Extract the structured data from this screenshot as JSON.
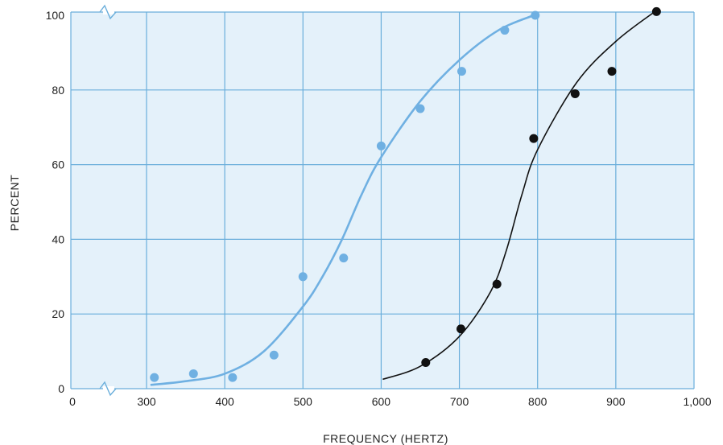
{
  "chart_data": {
    "type": "scatter",
    "xlabel": "FREQUENCY (HERTZ)",
    "ylabel": "PERCENT",
    "xlim": [
      300,
      1000
    ],
    "ylim": [
      0,
      100
    ],
    "x_ticks": [
      "0",
      "300",
      "400",
      "500",
      "600",
      "700",
      "800",
      "900",
      "1,000"
    ],
    "y_ticks": [
      "0",
      "20",
      "40",
      "60",
      "80",
      "100"
    ],
    "axis_breaks": [
      "x"
    ],
    "grid": true,
    "colors": {
      "plot_background": "#e4f1fa",
      "grid": "#6aaedb",
      "series_blue": "#6fb0e2",
      "series_black": "#111111"
    },
    "series": [
      {
        "color": "blue",
        "points": [
          [
            310,
            3
          ],
          [
            360,
            4
          ],
          [
            410,
            3
          ],
          [
            463,
            9
          ],
          [
            500,
            30
          ],
          [
            552,
            35
          ],
          [
            600,
            65
          ],
          [
            650,
            75
          ],
          [
            703,
            85
          ],
          [
            758,
            96
          ],
          [
            797,
            100
          ]
        ],
        "curve": [
          [
            305,
            1
          ],
          [
            350,
            2
          ],
          [
            400,
            4
          ],
          [
            450,
            10
          ],
          [
            500,
            22
          ],
          [
            525,
            30
          ],
          [
            550,
            40
          ],
          [
            575,
            52
          ],
          [
            600,
            62
          ],
          [
            650,
            77
          ],
          [
            700,
            88
          ],
          [
            750,
            96
          ],
          [
            795,
            100
          ]
        ]
      },
      {
        "color": "black",
        "points": [
          [
            657,
            7
          ],
          [
            702,
            16
          ],
          [
            748,
            28
          ],
          [
            795,
            67
          ],
          [
            848,
            79
          ],
          [
            895,
            85
          ],
          [
            952,
            101
          ]
        ],
        "curve": [
          [
            602,
            2.5
          ],
          [
            650,
            6
          ],
          [
            700,
            14
          ],
          [
            740,
            26
          ],
          [
            760,
            37
          ],
          [
            780,
            52
          ],
          [
            800,
            64
          ],
          [
            850,
            82
          ],
          [
            900,
            93
          ],
          [
            950,
            101
          ]
        ]
      }
    ]
  }
}
